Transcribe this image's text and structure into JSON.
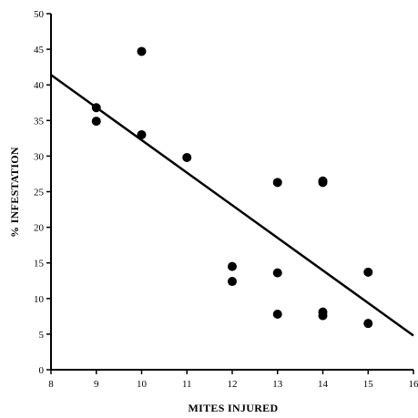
{
  "chart_data": {
    "type": "scatter",
    "title": "",
    "xlabel": "MITES INJURED",
    "ylabel": "% INFESTATION",
    "xlim": [
      8,
      16
    ],
    "ylim": [
      0,
      50
    ],
    "x_ticks": [
      8,
      9,
      10,
      11,
      12,
      13,
      14,
      15,
      16
    ],
    "y_ticks": [
      0,
      5,
      10,
      15,
      20,
      25,
      30,
      35,
      40,
      45,
      50
    ],
    "grid": false,
    "legend": "none",
    "series": [
      {
        "x": [
          9,
          9,
          10,
          10,
          11,
          12,
          12,
          13,
          13,
          13,
          14,
          14,
          14,
          14,
          15,
          15
        ],
        "y": [
          36.8,
          34.9,
          44.7,
          33.0,
          29.8,
          14.5,
          12.4,
          26.3,
          13.6,
          7.8,
          26.5,
          26.3,
          8.1,
          7.6,
          13.7,
          6.5
        ]
      }
    ],
    "trendline": {
      "x": [
        8,
        16
      ],
      "y": [
        41.4,
        4.8
      ]
    },
    "colors": {
      "points": "#000000",
      "line": "#000000",
      "axis": "#000000"
    }
  }
}
